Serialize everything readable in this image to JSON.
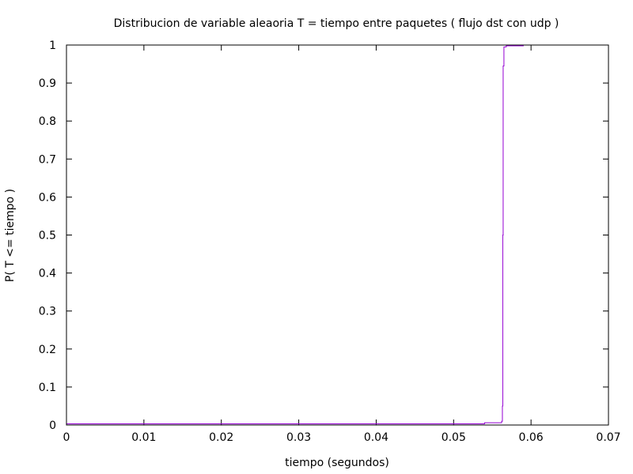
{
  "chart_data": {
    "type": "line",
    "title": "Distribucion de variable aleaoria T = tiempo entre paquetes  ( flujo dst con udp )",
    "xlabel": "tiempo (segundos)",
    "ylabel": "P( T <= tiempo )",
    "xlim": [
      0,
      0.07
    ],
    "ylim": [
      0,
      1
    ],
    "xticks": [
      0,
      0.01,
      0.02,
      0.03,
      0.04,
      0.05,
      0.06,
      0.07
    ],
    "xtick_labels": [
      "0",
      "0.01",
      "0.02",
      "0.03",
      "0.04",
      "0.05",
      "0.06",
      "0.07"
    ],
    "yticks": [
      0,
      0.1,
      0.2,
      0.3,
      0.4,
      0.5,
      0.6,
      0.7,
      0.8,
      0.9,
      1
    ],
    "ytick_labels": [
      "0",
      "0.1",
      "0.2",
      "0.3",
      "0.4",
      "0.5",
      "0.6",
      "0.7",
      "0.8",
      "0.9",
      "1"
    ],
    "grid": false,
    "series": [
      {
        "color": "#9400d3",
        "step": true,
        "x": [
          0,
          0.054,
          0.0562,
          0.0563,
          0.05635,
          0.0564,
          0.0565,
          0.0568,
          0.059
        ],
        "y": [
          0.003,
          0.006,
          0.01,
          0.05,
          0.5,
          0.945,
          0.995,
          0.998,
          1.0
        ]
      }
    ]
  }
}
